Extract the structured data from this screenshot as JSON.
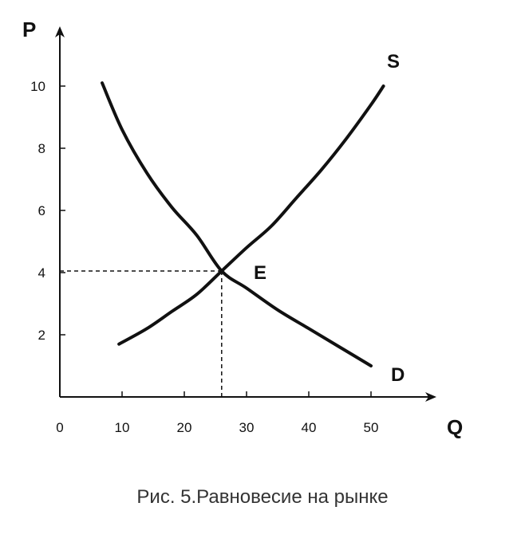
{
  "chart_data": {
    "type": "line",
    "title": "",
    "caption": "Рис. 5.Равновесие на рынке",
    "xlabel": "Q",
    "ylabel": "P",
    "xlim": [
      0,
      60
    ],
    "ylim": [
      0,
      12
    ],
    "x_ticks": [
      "0",
      "10",
      "20",
      "30",
      "40",
      "50"
    ],
    "y_ticks": [
      "2",
      "4",
      "6",
      "8",
      "10"
    ],
    "grid": false,
    "series": [
      {
        "name": "D",
        "points": [
          [
            6.8,
            10.1
          ],
          [
            10,
            8.6
          ],
          [
            14,
            7.2
          ],
          [
            18,
            6.1
          ],
          [
            22,
            5.2
          ],
          [
            26,
            4.05
          ],
          [
            30,
            3.5
          ],
          [
            35,
            2.8
          ],
          [
            40,
            2.2
          ],
          [
            45,
            1.6
          ],
          [
            50,
            1.0
          ]
        ]
      },
      {
        "name": "S",
        "points": [
          [
            9.5,
            1.7
          ],
          [
            14,
            2.2
          ],
          [
            18,
            2.75
          ],
          [
            22,
            3.3
          ],
          [
            26,
            4.05
          ],
          [
            30,
            4.8
          ],
          [
            34,
            5.5
          ],
          [
            38,
            6.4
          ],
          [
            42,
            7.3
          ],
          [
            46,
            8.3
          ],
          [
            50,
            9.4
          ],
          [
            52,
            10.0
          ]
        ]
      }
    ],
    "equilibrium": {
      "label": "E",
      "x": 26,
      "y": 4.05
    },
    "colors": {
      "curve": "#111111",
      "axis": "#111111",
      "caption": "#333333"
    }
  }
}
